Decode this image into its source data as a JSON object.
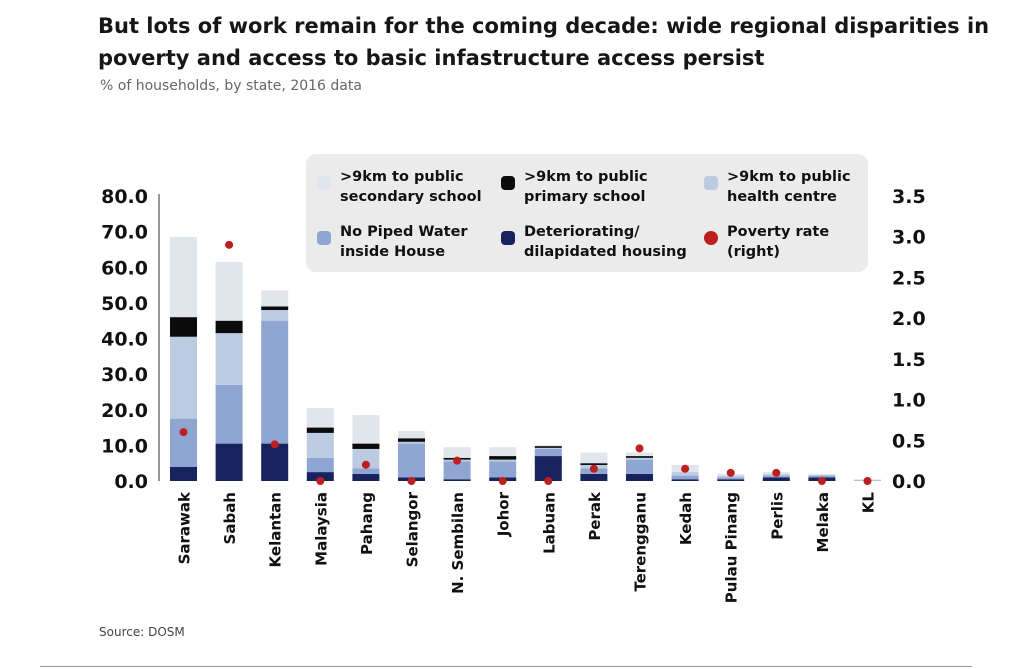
{
  "title": "But lots of work remain for the coming decade: wide regional disparities in poverty and access to basic infastructure access persist",
  "subtitle": "% of households, by state, 2016 data",
  "source": "Source: DOSM",
  "chart_data": {
    "type": "bar",
    "stacked": true,
    "categories": [
      "Sarawak",
      "Sabah",
      "Kelantan",
      "Malaysia",
      "Pahang",
      "Selangor",
      "N. Sembilan",
      "Johor",
      "Labuan",
      "Perak",
      "Terengganu",
      "Kedah",
      "Pulau Pinang",
      "Perlis",
      "Melaka",
      "KL"
    ],
    "series": [
      {
        "name": "Deteriorating/ dilapidated housing",
        "color": "#18225e",
        "axis": "left",
        "values": [
          4.0,
          10.5,
          10.5,
          2.5,
          2.0,
          1.0,
          0.5,
          1.0,
          7.0,
          2.0,
          2.0,
          0.5,
          0.5,
          1.0,
          1.0,
          0.0
        ]
      },
      {
        "name": "No Piped Water inside House",
        "color": "#8fa6d2",
        "axis": "left",
        "values": [
          13.5,
          16.5,
          34.5,
          4.0,
          1.5,
          9.5,
          5.0,
          4.5,
          2.0,
          1.5,
          4.0,
          1.0,
          0.5,
          0.5,
          0.5,
          0.2
        ]
      },
      {
        "name": ">9km to public health centre",
        "color": "#bccbe2",
        "axis": "left",
        "values": [
          23.0,
          14.5,
          3.0,
          7.0,
          5.5,
          0.5,
          0.5,
          0.5,
          0.3,
          1.0,
          0.5,
          1.0,
          0.5,
          0.5,
          0.2,
          0.0
        ]
      },
      {
        "name": ">9km to public primary school",
        "color": "#0b0b0b",
        "axis": "left",
        "values": [
          5.5,
          3.5,
          1.0,
          1.5,
          1.5,
          1.0,
          0.5,
          1.0,
          0.5,
          0.5,
          0.5,
          0.0,
          0.0,
          0.0,
          0.0,
          0.0
        ]
      },
      {
        "name": ">9km to public secondary school",
        "color": "#e1e5ec",
        "axis": "left",
        "values": [
          22.5,
          16.5,
          4.5,
          5.5,
          8.0,
          2.0,
          3.0,
          2.5,
          0.2,
          3.0,
          1.0,
          2.0,
          0.5,
          0.5,
          0.3,
          0.3
        ]
      },
      {
        "name": "Poverty rate (right)",
        "color": "#bf1e1e",
        "axis": "right",
        "type": "scatter",
        "values": [
          0.6,
          2.9,
          0.45,
          0.0,
          0.2,
          0.0,
          0.25,
          0.0,
          0.0,
          0.15,
          0.4,
          0.15,
          0.1,
          0.1,
          0.0,
          0.0
        ]
      }
    ],
    "y_left": {
      "ylim": [
        0,
        80
      ],
      "ticks": [
        "0.0",
        "10.0",
        "20.0",
        "30.0",
        "40.0",
        "50.0",
        "60.0",
        "70.0",
        "80.0"
      ]
    },
    "y_right": {
      "ylim": [
        0,
        3.5
      ],
      "ticks": [
        "0.0",
        "0.5",
        "1.0",
        "1.5",
        "2.0",
        "2.5",
        "3.0",
        "3.5"
      ]
    },
    "legend": {
      "placement": "top-right",
      "background": "#ebebeb",
      "items": [
        {
          "line1": ">9km to public",
          "line2": "secondary school",
          "color": "#e1e5ec",
          "marker": "square"
        },
        {
          "line1": ">9km to public",
          "line2": "primary school",
          "color": "#0b0b0b",
          "marker": "square"
        },
        {
          "line1": ">9km to public",
          "line2": "health centre",
          "color": "#bccbe2",
          "marker": "square"
        },
        {
          "line1": "No Piped Water",
          "line2": "inside House",
          "color": "#8fa6d2",
          "marker": "square"
        },
        {
          "line1": "Deteriorating/",
          "line2": "dilapidated housing",
          "color": "#18225e",
          "marker": "square"
        },
        {
          "line1": "Poverty rate",
          "line2": "(right)",
          "color": "#bf1e1e",
          "marker": "circle"
        }
      ]
    },
    "grid": false
  }
}
